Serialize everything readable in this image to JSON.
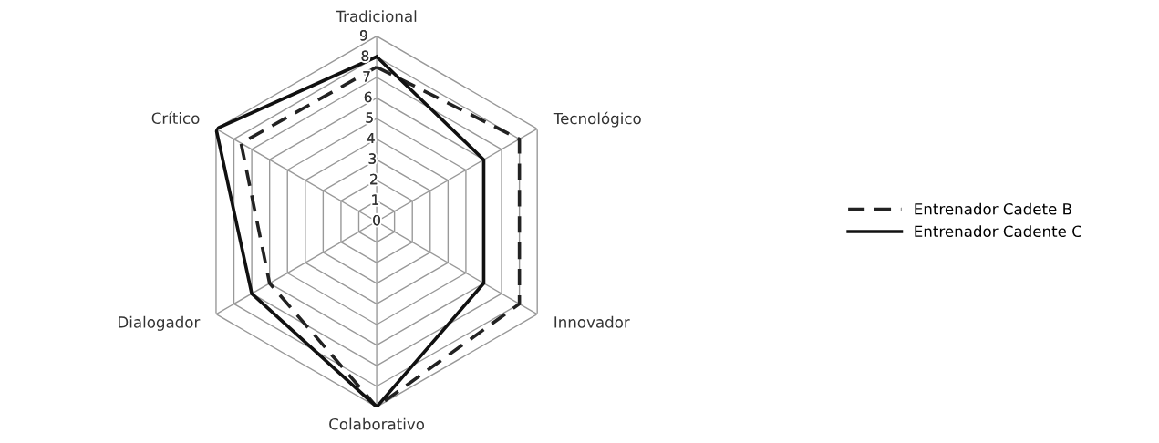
{
  "chart_data": {
    "type": "radar",
    "categories": [
      "Tradicional",
      "Tecnológico",
      "Innovador",
      "Colaborativo",
      "Dialogador",
      "Crítico"
    ],
    "ylim": [
      0,
      9
    ],
    "yticks": [
      0,
      1,
      2,
      3,
      4,
      5,
      6,
      7,
      8,
      9
    ],
    "grid": true,
    "legend": "right",
    "series": [
      {
        "name": "Entrenador Cadete B",
        "color": "#222222",
        "line_style": "dashed",
        "values": [
          7.5,
          8,
          8,
          9,
          6,
          7.6
        ]
      },
      {
        "name": "Entrenador Cadente C",
        "color": "#111111",
        "line_style": "solid",
        "values": [
          8,
          6,
          6,
          9,
          7,
          9
        ]
      }
    ]
  }
}
